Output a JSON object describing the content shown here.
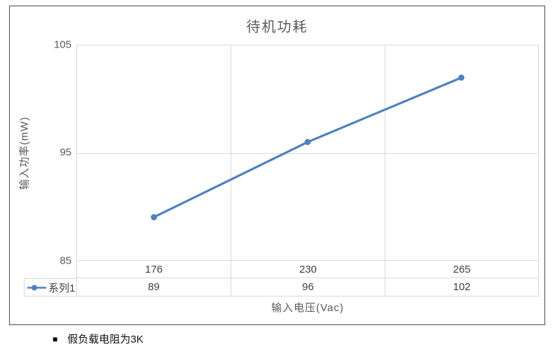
{
  "chart_data": {
    "type": "line",
    "title": "待机功耗",
    "categories": [
      "176",
      "230",
      "265"
    ],
    "series": [
      {
        "name": "系列1",
        "values": [
          89,
          96,
          102
        ],
        "color": "#4F81BD"
      }
    ],
    "xlabel": "输入电压(Vac)",
    "ylabel": "输入功率(mW)",
    "ylim": [
      85,
      105
    ],
    "yticks": [
      85,
      95,
      105
    ],
    "grid": true,
    "legend_position": "data-table-left",
    "data_table": true
  },
  "note": {
    "bullet": "■",
    "text": "假负载电阻为3K"
  },
  "colors": {
    "line": "#4F81BD",
    "grid": "#D9D9D9",
    "text": "#595959",
    "border": "#4C4C4C"
  }
}
